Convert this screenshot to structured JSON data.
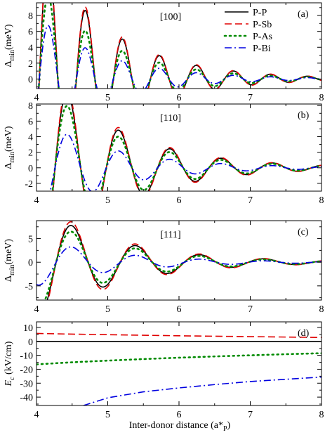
{
  "colors": {
    "P-P": "#000000",
    "P-Sb": "#e00000",
    "P-As": "#008a00",
    "P-Bi": "#0000e0"
  },
  "x_label": "Inter-donor distance (a*P)",
  "chart_data": [
    {
      "type": "line",
      "panel_label": "(a)",
      "annotation": "[100]",
      "ylabel": "Δmin(meV)",
      "xlim": [
        4,
        8
      ],
      "ylim": [
        -1.2,
        9.6
      ],
      "xticks": [
        "4",
        "5",
        "6",
        "7",
        "8"
      ],
      "yticks": [
        "0",
        "2",
        "4",
        "6",
        "8"
      ],
      "legend": {
        "placement": "top-right",
        "entries": [
          "P-P",
          "P-Sb",
          "P-As",
          "P-Bi"
        ]
      },
      "series": [
        {
          "name": "P-P",
          "style": "solid",
          "curve": {
            "A": 17.6,
            "decay": 1.04,
            "period": 0.52,
            "phase": 4.17,
            "offset": 0.02
          }
        },
        {
          "name": "P-Sb",
          "style": "dashed",
          "curve": {
            "A": 18.5,
            "decay": 1.04,
            "period": 0.52,
            "phase": 4.17,
            "offset": 0.02
          }
        },
        {
          "name": "P-As",
          "style": "dotted",
          "curve": {
            "A": 12.4,
            "decay": 1.04,
            "period": 0.52,
            "phase": 4.17,
            "offset": 0.02
          }
        },
        {
          "name": "P-Bi",
          "style": "dashdot",
          "curve": {
            "A": 8.0,
            "decay": 1.04,
            "period": 0.52,
            "phase": 4.17,
            "offset": 0.02
          }
        }
      ]
    },
    {
      "type": "line",
      "panel_label": "(b)",
      "annotation": "[110]",
      "ylabel": "Δmin(meV)",
      "xlim": [
        4,
        8
      ],
      "ylim": [
        -3,
        8.2
      ],
      "xticks": [
        "4",
        "5",
        "6",
        "7",
        "8"
      ],
      "yticks": [
        "-2",
        "0",
        "2",
        "4",
        "6",
        "8"
      ],
      "series": [
        {
          "name": "P-P",
          "style": "solid",
          "curve": {
            "A": 14.5,
            "decay": 0.95,
            "period": 0.72,
            "phase": 4.44,
            "offset": 0
          }
        },
        {
          "name": "P-Sb",
          "style": "dashed",
          "curve": {
            "A": 15.5,
            "decay": 0.95,
            "period": 0.72,
            "phase": 4.44,
            "offset": 0
          }
        },
        {
          "name": "P-As",
          "style": "dotted",
          "curve": {
            "A": 12.0,
            "decay": 0.95,
            "period": 0.72,
            "phase": 4.44,
            "offset": 0
          }
        },
        {
          "name": "P-Bi",
          "style": "dashdot",
          "curve": {
            "A": 6.5,
            "decay": 0.95,
            "period": 0.72,
            "phase": 4.44,
            "offset": 0
          }
        }
      ]
    },
    {
      "type": "line",
      "panel_label": "(c)",
      "annotation": "[111]",
      "ylabel": "Δmin(meV)",
      "xlim": [
        4,
        8
      ],
      "ylim": [
        -8,
        8.8
      ],
      "xticks": [
        "4",
        "5",
        "6",
        "7",
        "8"
      ],
      "yticks": [
        "-5",
        "0",
        "5"
      ],
      "series": [
        {
          "name": "P-P",
          "style": "solid",
          "curve": {
            "A": 12.0,
            "decay": 0.88,
            "period": 0.9,
            "phase": 4.5,
            "offset": 0
          }
        },
        {
          "name": "P-Sb",
          "style": "dashed",
          "curve": {
            "A": 13.2,
            "decay": 0.88,
            "period": 0.9,
            "phase": 4.5,
            "offset": 0
          }
        },
        {
          "name": "P-As",
          "style": "dotted",
          "curve": {
            "A": 10.0,
            "decay": 0.88,
            "period": 0.9,
            "phase": 4.5,
            "offset": 0
          }
        },
        {
          "name": "P-Bi",
          "style": "dashdot",
          "curve": {
            "A": 5.0,
            "decay": 0.88,
            "period": 0.9,
            "phase": 4.5,
            "offset": 0
          }
        }
      ]
    },
    {
      "type": "line",
      "panel_label": "(d)",
      "annotation": "",
      "ylabel": "Ec (kV/cm)",
      "xlim": [
        4,
        8
      ],
      "ylim": [
        -46,
        14
      ],
      "xticks": [
        "4",
        "5",
        "6",
        "7",
        "8"
      ],
      "yticks": [
        "-40",
        "-30",
        "-20",
        "-10",
        "0",
        "10"
      ],
      "series": [
        {
          "name": "P-P",
          "style": "solid",
          "x": [
            4.0,
            8.0
          ],
          "y": [
            0,
            0
          ]
        },
        {
          "name": "P-Sb",
          "style": "dashed",
          "x": [
            4.0,
            4.5,
            5.0,
            5.5,
            6.0,
            6.5,
            7.0,
            7.5,
            8.0
          ],
          "y": [
            5.7,
            5.2,
            4.8,
            4.4,
            4.0,
            3.7,
            3.4,
            3.1,
            2.8
          ]
        },
        {
          "name": "P-As",
          "style": "dotted",
          "x": [
            4.0,
            4.5,
            5.0,
            5.5,
            6.0,
            6.5,
            7.0,
            7.5,
            8.0
          ],
          "y": [
            -16.5,
            -15.0,
            -13.8,
            -12.7,
            -11.7,
            -10.8,
            -10.0,
            -9.2,
            -8.5
          ]
        },
        {
          "name": "P-Bi",
          "style": "dashdot",
          "x": [
            4.66,
            5.0,
            5.5,
            6.0,
            6.5,
            7.0,
            7.5,
            8.0
          ],
          "y": [
            -46.0,
            -40.5,
            -36.2,
            -33.4,
            -31.0,
            -28.8,
            -27.2,
            -25.6
          ]
        }
      ]
    }
  ]
}
